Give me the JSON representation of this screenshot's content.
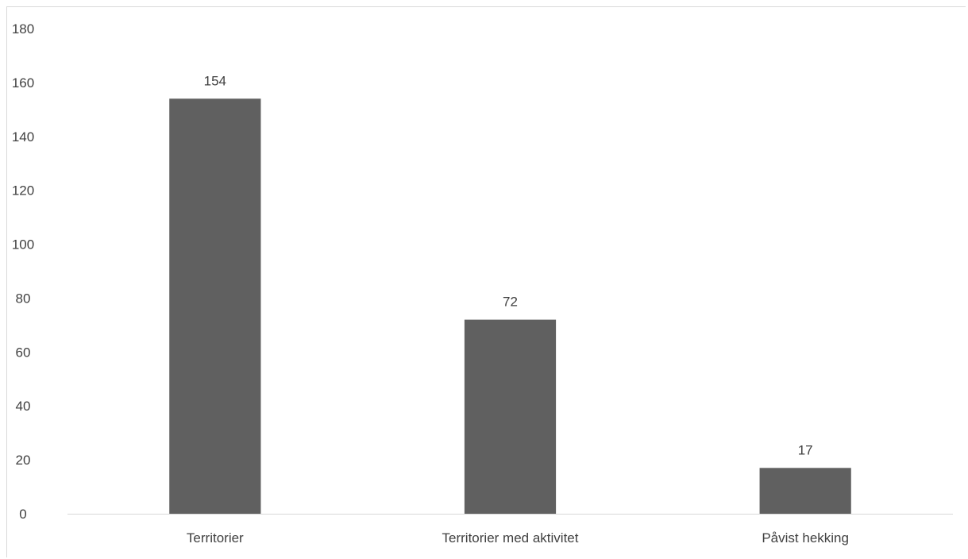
{
  "chart_data": {
    "type": "bar",
    "categories": [
      "Territorier",
      "Territorier med aktivitet",
      "Påvist hekking"
    ],
    "values": [
      154,
      72,
      17
    ],
    "data_labels": [
      "154",
      "72",
      "17"
    ],
    "title": "",
    "xlabel": "",
    "ylabel": "",
    "ylim": [
      0,
      180
    ],
    "yticks": [
      0,
      20,
      40,
      60,
      80,
      100,
      120,
      140,
      160,
      180
    ],
    "grid": false,
    "legend": "none",
    "colors": {
      "bar": "#606060",
      "axis": "#d9d9d9",
      "text": "#404040"
    }
  }
}
